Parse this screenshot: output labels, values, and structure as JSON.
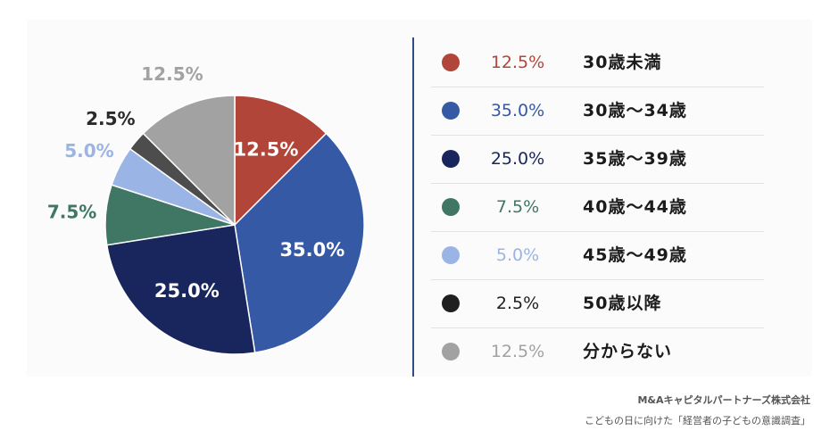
{
  "chart_data": {
    "type": "pie",
    "title": "",
    "start_angle_deg": 0,
    "direction": "clockwise",
    "slices": [
      {
        "category": "30歳未満",
        "value": 12.5,
        "label": "12.5%",
        "color": "#b2453a",
        "label_color": "#ffffff"
      },
      {
        "category": "30歳～34歳",
        "value": 35.0,
        "label": "35.0%",
        "color": "#3559a5",
        "label_color": "#ffffff"
      },
      {
        "category": "35歳～39歳",
        "value": 25.0,
        "label": "25.0%",
        "color": "#18265d",
        "label_color": "#ffffff"
      },
      {
        "category": "40歳～44歳",
        "value": 7.5,
        "label": "7.5%",
        "color": "#3f7664",
        "label_color": "#3f7664"
      },
      {
        "category": "45歳～49歳",
        "value": 5.0,
        "label": "5.0%",
        "color": "#9ab4e6",
        "label_color": "#9ab4e6"
      },
      {
        "category": "50歳以降",
        "value": 2.5,
        "label": "2.5%",
        "color": "#4d4d4d",
        "label_color": "#2a2a2a"
      },
      {
        "category": "分からない",
        "value": 12.5,
        "label": "12.5%",
        "color": "#a2a2a2",
        "label_color": "#a2a2a2"
      }
    ],
    "legend": {
      "placement": "right",
      "entries": [
        {
          "dot_color": "#b2453a",
          "pct": "12.5%",
          "pct_color": "#b2453a",
          "category": "30歳未満"
        },
        {
          "dot_color": "#3559a5",
          "pct": "35.0%",
          "pct_color": "#3559a5",
          "category": "30歳～34歳"
        },
        {
          "dot_color": "#18265d",
          "pct": "25.0%",
          "pct_color": "#18265d",
          "category": "35歳～39歳"
        },
        {
          "dot_color": "#3f7664",
          "pct": "7.5%",
          "pct_color": "#3f7664",
          "category": "40歳～44歳"
        },
        {
          "dot_color": "#9ab4e6",
          "pct": "5.0%",
          "pct_color": "#9ab4e6",
          "category": "45歳～49歳"
        },
        {
          "dot_color": "#1f1f1f",
          "pct": "2.5%",
          "pct_color": "#1f1f1f",
          "category": "50歳以降"
        },
        {
          "dot_color": "#a2a2a2",
          "pct": "12.5%",
          "pct_color": "#a2a2a2",
          "category": "分からない"
        }
      ]
    }
  },
  "footer": {
    "source": "M&Aキャピタルパートナーズ株式会社",
    "survey": "こどもの日に向けた「経営者の子どもの意識調査」"
  }
}
